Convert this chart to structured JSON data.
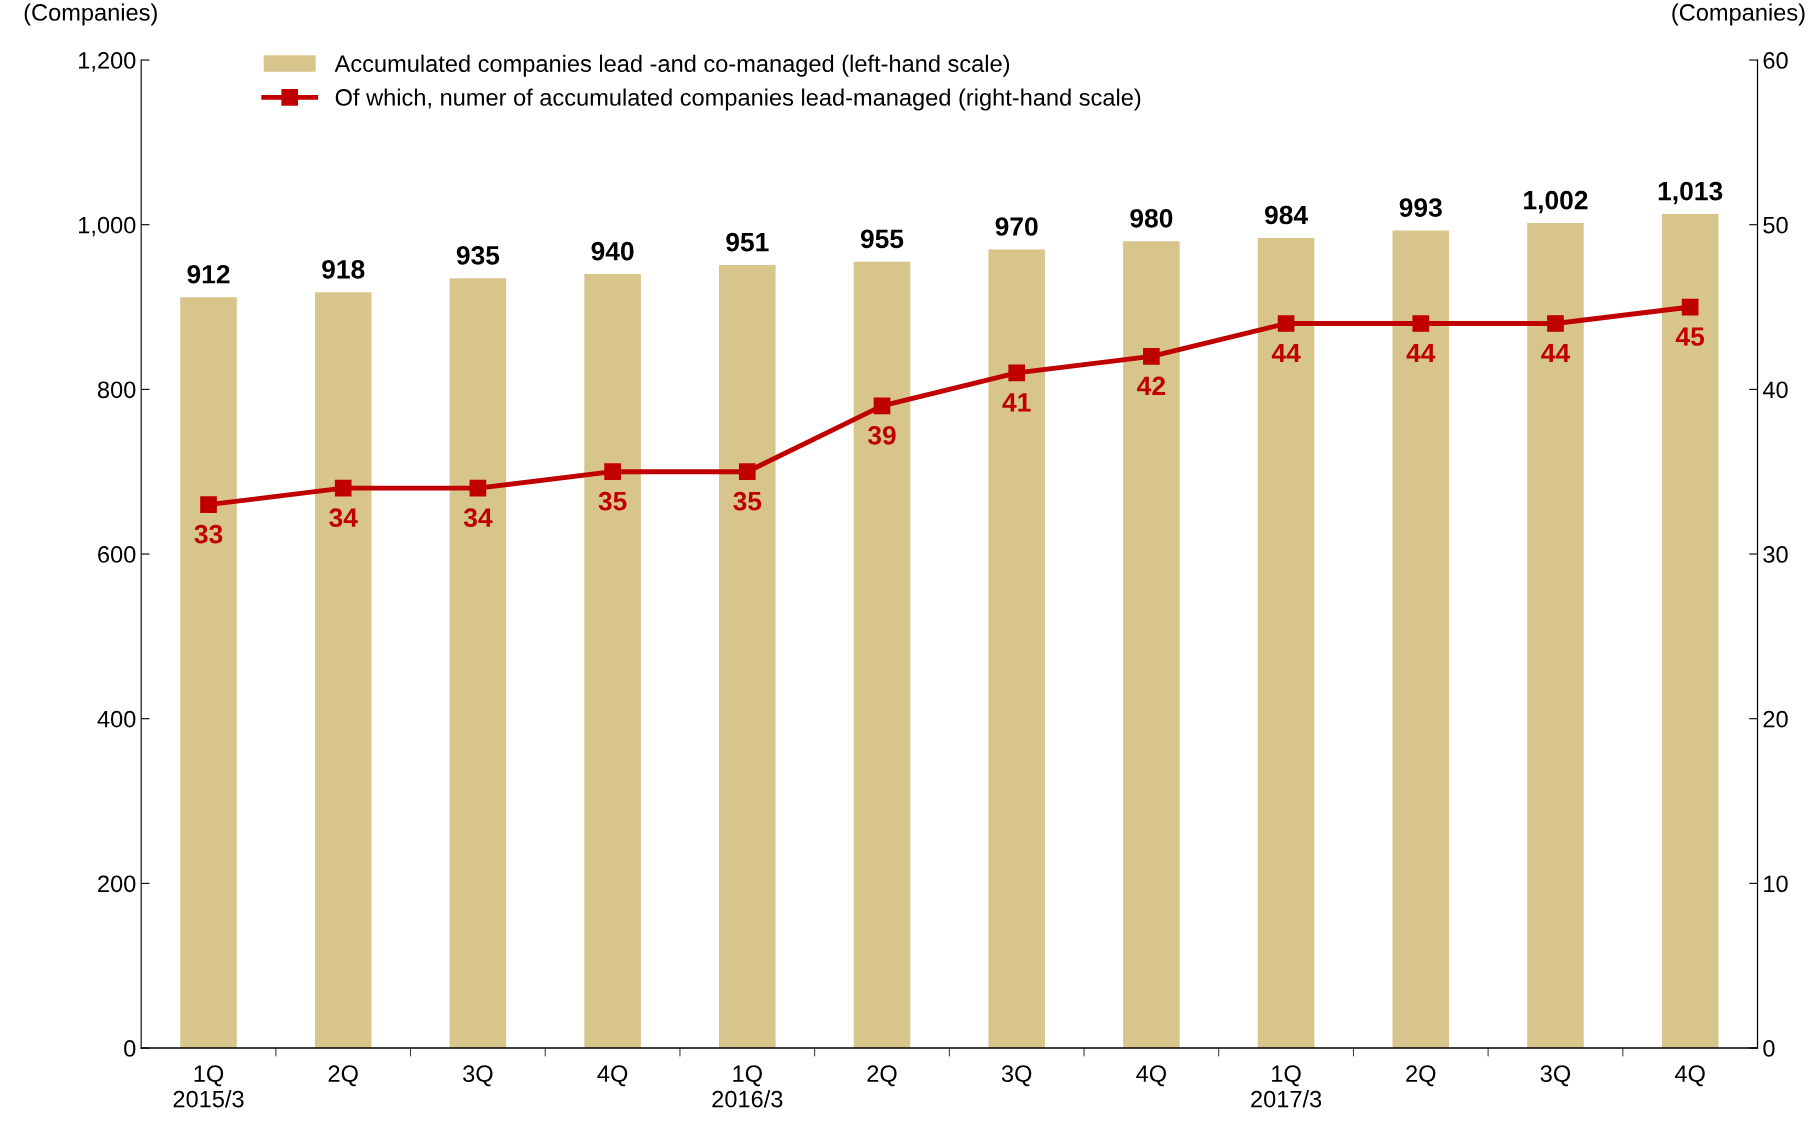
{
  "chart_data": {
    "type": "bar",
    "categories": [
      "1Q\n2015/3",
      "2Q",
      "3Q",
      "4Q",
      "1Q\n2016/3",
      "2Q",
      "3Q",
      "4Q",
      "1Q\n2017/3",
      "2Q",
      "3Q",
      "4Q"
    ],
    "series": [
      {
        "name": "Accumulated companies lead -and co-managed (left-hand scale)",
        "color": "#d8c58c",
        "values": [
          912,
          918,
          935,
          940,
          951,
          955,
          970,
          980,
          984,
          993,
          1002,
          1013
        ],
        "value_labels": [
          "912",
          "918",
          "935",
          "940",
          "951",
          "955",
          "970",
          "980",
          "984",
          "993",
          "1,002",
          "1,013"
        ]
      },
      {
        "name": "Of which, numer of accumulated companies lead-managed (right-hand scale)",
        "type": "line",
        "axis": "y2",
        "color": "#c00000",
        "marker": "square",
        "values": [
          33,
          34,
          34,
          35,
          35,
          39,
          41,
          42,
          44,
          44,
          44,
          45
        ],
        "value_labels": [
          "33",
          "34",
          "34",
          "35",
          "35",
          "39",
          "41",
          "42",
          "44",
          "44",
          "44",
          "45"
        ]
      }
    ],
    "ylabel": "(Companies)",
    "y2label": "(Companies)",
    "ylim": [
      0,
      1200
    ],
    "yticks": [
      {
        "value": 0,
        "label": "0"
      },
      {
        "value": 200,
        "label": "200"
      },
      {
        "value": 400,
        "label": "400"
      },
      {
        "value": 600,
        "label": "600"
      },
      {
        "value": 800,
        "label": "800"
      },
      {
        "value": 1000,
        "label": "1,000"
      },
      {
        "value": 1200,
        "label": "1,200"
      }
    ],
    "y2lim": [
      0,
      60
    ],
    "y2ticks": [
      0,
      10,
      20,
      30,
      40,
      50,
      60
    ],
    "legend": "top left",
    "grid": false
  }
}
